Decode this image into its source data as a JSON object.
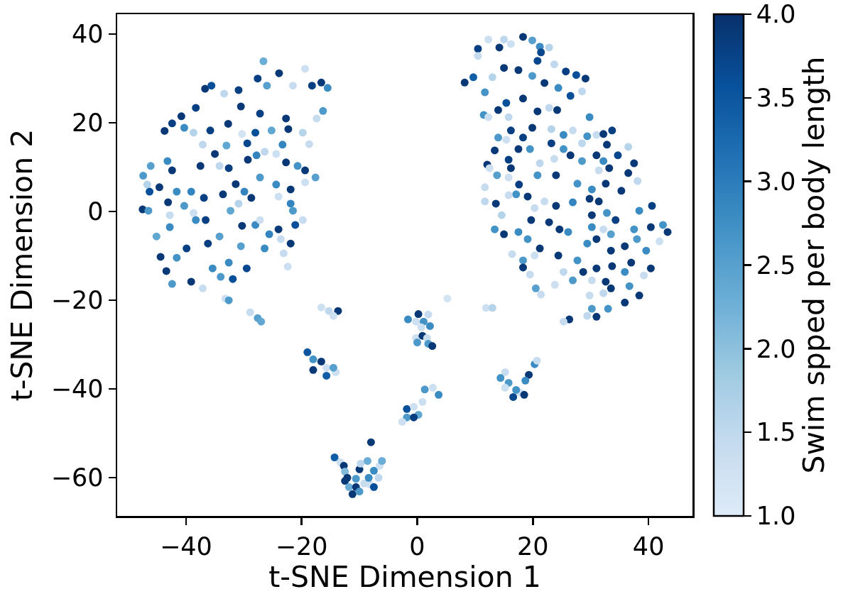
{
  "chart_data": {
    "type": "scatter",
    "xlabel": "t-SNE Dimension 1",
    "ylabel": "t-SNE Dimension 2",
    "clabel": "Swim spped per body length",
    "marker": "circle",
    "xlim": [
      -51.9,
      47.6
    ],
    "xticks": [
      -40,
      -20,
      0,
      20,
      40
    ],
    "ylim": [
      -68.6,
      44.5
    ],
    "yticks": [
      -60,
      -40,
      -20,
      0,
      20,
      40
    ],
    "clim": [
      1.0,
      4.0
    ],
    "cticks": [
      {
        "value": 1.0,
        "label": "1.0"
      },
      1.5,
      {
        "value": 2.0,
        "label": "2.0"
      },
      2.5,
      {
        "value": 3.0,
        "label": "3.0"
      },
      3.5,
      {
        "value": 4.0,
        "label": "4.0"
      }
    ],
    "x": [
      -26.6,
      -23.9,
      -19.4,
      -16.6,
      -15.5,
      -36.7,
      -35.6,
      -33.4,
      -30.9,
      -27.6,
      -26.0,
      -21.5,
      -18.2,
      -16.3,
      -17.4,
      -22.7,
      -27.2,
      -30.5,
      -38.3,
      -40.8,
      -43.7,
      -42.4,
      -40.3,
      -38.7,
      -35.8,
      -37.1,
      -35.0,
      -32.7,
      -30.3,
      -28.0,
      -25.2,
      -22.3,
      -19.8,
      -18.7,
      -23.3,
      -29.4,
      -33.0,
      -29.3,
      -34.2,
      -37.5,
      -43.2,
      -42.4,
      -46.1,
      -47.4,
      -46.7,
      -44.6,
      -46.3,
      -47.5,
      -46.5,
      -43.1,
      -42.8,
      -41.6,
      -39.1,
      -40.3,
      -36.9,
      -33.6,
      -38.7,
      -36.6,
      -32.6,
      -31.4,
      -29.9,
      -28.7,
      -30.9,
      -32.3,
      -27.8,
      -26.4,
      -24.4,
      -22.7,
      -20.7,
      -19.4,
      -17.6,
      -19.4,
      -21.9,
      -24.4,
      -27.2,
      -24.0,
      -21.9,
      -21.5,
      -19.8,
      -21.1,
      -24.0,
      -23.6,
      -21.9,
      -23.1,
      -22.4,
      -28.0,
      -30.3,
      -34.2,
      -36.2,
      -39.9,
      -41.6,
      -44.4,
      -45.1,
      -42.8,
      -43.4,
      -42.4,
      -39.1,
      -37.1,
      -35.4,
      -31.9,
      -32.6,
      -30.5,
      -29.5,
      -26.4,
      -27.2,
      -25.6,
      -38.3,
      -34.0,
      12.3,
      15.0,
      18.3,
      19.9,
      21.2,
      22.8,
      10.5,
      10.5,
      14.2,
      16.2,
      21.4,
      8.2,
      9.7,
      11.7,
      13.0,
      15.0,
      17.5,
      19.9,
      20.8,
      23.7,
      25.7,
      27.5,
      29.1,
      28.5,
      26.5,
      24.4,
      22.0,
      18.3,
      15.4,
      14.0,
      11.5,
      12.3,
      15.8,
      20.8,
      22.8,
      24.2,
      29.8,
      23.2,
      25.3,
      26.9,
      16.2,
      19.9,
      14.0,
      15.4,
      18.3,
      13.4,
      12.1,
      12.5,
      15.8,
      17.5,
      19.5,
      16.2,
      21.2,
      23.7,
      23.2,
      24.0,
      20.8,
      17.6,
      15.8,
      13.8,
      25.3,
      26.5,
      28.5,
      29.4,
      31.0,
      32.2,
      33.7,
      32.8,
      31.0,
      28.5,
      32.2,
      34.7,
      36.5,
      37.5,
      36.5,
      38.1,
      33.2,
      31.4,
      27.7,
      32.6,
      35.3,
      30.2,
      29.8,
      31.4,
      30.2,
      32.8,
      34.3,
      38.4,
      40.6,
      42.5,
      43.3,
      41.9,
      40.4,
      37.5,
      38.0,
      35.9,
      33.5,
      32.2,
      30.2,
      31.0,
      33.5,
      29.4,
      26.1,
      24.6,
      22.8,
      19.7,
      20.3,
      22.0,
      24.0,
      26.9,
      19.1,
      17.1,
      15.8,
      13.6,
      11.7,
      11.7,
      14.6,
      13.4,
      15.0,
      17.5,
      19.1,
      21.2,
      24.4,
      20.3,
      16.4,
      18.3,
      18.3,
      19.5,
      20.5,
      21.4,
      23.8,
      25.3,
      26.9,
      27.7,
      28.7,
      31.0,
      33.7,
      35.9,
      37.0,
      39.6,
      40.4,
      39.2,
      36.7,
      33.5,
      32.2,
      29.8,
      32.6,
      38.4,
      35.9,
      33.0,
      30.2,
      31.0,
      29.4,
      26.3,
      25.3,
      11.9,
      13.0,
      30.2,
      -33.2,
      -32.6,
      -28.9,
      -27.6,
      -27.0,
      -16.6,
      -15.3,
      -13.7,
      -14.5,
      -19.0,
      -18.0,
      -16.6,
      -18.0,
      -15.7,
      -15.7,
      -14.1,
      -14.5,
      5.2,
      0.2,
      -1.6,
      1.9,
      -0.2,
      1.1,
      2.2,
      0.7,
      -0.2,
      0.9,
      1.7,
      1.9,
      2.6,
      0.0,
      15.2,
      14.4,
      15.8,
      15.2,
      16.6,
      17.8,
      18.5,
      19.3,
      18.7,
      20.3,
      20.7,
      17.1,
      1.3,
      2.7,
      3.7,
      0.9,
      -1.8,
      -0.6,
      -1.8,
      0.2,
      -2.6,
      -0.6,
      -8.0,
      -14.3,
      -13.3,
      -12.7,
      -12.5,
      -12.1,
      -12.5,
      -11.8,
      -11.2,
      -10.6,
      -10.6,
      -10.0,
      -9.8,
      -8.6,
      -9.2,
      -8.2,
      -8.4,
      -7.5,
      -7.5,
      -6.7,
      -6.5,
      -6.1,
      -10.0
    ],
    "values": [
      33.9,
      31.2,
      32.2,
      29.1,
      27.9,
      27.7,
      28.4,
      26.6,
      27.4,
      30.0,
      28.4,
      28.4,
      28.4,
      22.7,
      21.0,
      21.0,
      22.1,
      23.7,
      23.4,
      21.5,
      18.2,
      19.9,
      18.9,
      17.8,
      18.3,
      15.1,
      13.0,
      19.8,
      17.5,
      17.8,
      18.3,
      18.6,
      17.8,
      15.2,
      15.1,
      15.4,
      14.9,
      11.7,
      10.3,
      10.3,
      11.4,
      9.3,
      10.3,
      8.1,
      6.1,
      5.5,
      4.5,
      0.5,
      0.2,
      2.1,
      -0.8,
      4.5,
      4.5,
      1.3,
      3.1,
      3.9,
      -0.3,
      -1.9,
      9.8,
      6.2,
      4.5,
      3.1,
      1.8,
      0.2,
      12.7,
      13.5,
      13.0,
      11.1,
      10.3,
      9.3,
      7.7,
      6.6,
      5.0,
      6.1,
      7.7,
      3.4,
      1.8,
      0.2,
      -1.9,
      -3.0,
      -4.0,
      -6.2,
      -7.2,
      -9.4,
      -12.4,
      -3.0,
      -3.2,
      -5.6,
      -7.2,
      -8.3,
      -10.4,
      -10.2,
      -5.6,
      -3.5,
      -13.4,
      -16.3,
      -15.8,
      -17.3,
      -12.8,
      -15.2,
      -11.5,
      -7.8,
      -12.8,
      -8.3,
      -1.9,
      -5.1,
      -1.9,
      -14.7,
      38.8,
      38.8,
      39.4,
      38.6,
      37.2,
      37.0,
      36.7,
      35.1,
      37.0,
      37.8,
      35.9,
      29.1,
      30.3,
      26.9,
      30.3,
      32.4,
      31.9,
      30.6,
      34.0,
      33.2,
      31.6,
      30.8,
      30.0,
      27.1,
      26.1,
      27.9,
      29.0,
      25.5,
      24.5,
      22.9,
      21.8,
      21.3,
      21.3,
      22.6,
      23.4,
      22.9,
      21.3,
      18.6,
      17.3,
      18.3,
      18.3,
      18.9,
      16.7,
      16.2,
      16.7,
      13.8,
      10.6,
      9.8,
      11.7,
      14.1,
      14.1,
      9.8,
      10.9,
      11.9,
      15.4,
      8.2,
      8.2,
      6.1,
      7.7,
      8.2,
      14.1,
      12.7,
      15.4,
      17.0,
      17.3,
      17.5,
      18.3,
      15.1,
      12.7,
      11.4,
      11.4,
      12.7,
      14.6,
      10.9,
      8.7,
      6.9,
      9.8,
      9.3,
      6.3,
      6.3,
      4.7,
      5.0,
      2.9,
      2.3,
      -0.8,
      -0.3,
      -1.9,
      0.2,
      1.3,
      -3.0,
      -4.6,
      -6.7,
      -3.5,
      -4.0,
      -6.2,
      -7.8,
      -5.1,
      -4.0,
      -3.5,
      -6.2,
      -8.8,
      -7.2,
      -4.6,
      -4.0,
      -2.4,
      -1.9,
      0.8,
      2.3,
      1.3,
      2.1,
      3.4,
      3.9,
      3.7,
      1.8,
      2.3,
      5.5,
      -0.8,
      -4.0,
      -5.1,
      -4.6,
      -6.2,
      -8.3,
      -9.9,
      -9.9,
      -9.6,
      -11.0,
      -12.6,
      -14.2,
      -17.3,
      -18.7,
      -16.5,
      -13.6,
      -15.5,
      -11.0,
      -13.6,
      -12.8,
      -12.3,
      -13.6,
      -11.5,
      -8.8,
      -12.8,
      -14.4,
      -16.8,
      -17.3,
      -18.4,
      -18.9,
      -15.8,
      -18.9,
      -20.5,
      -21.9,
      -21.9,
      -23.7,
      -23.5,
      -24.3,
      -24.8,
      -21.7,
      -21.7,
      -15.5,
      -19.6,
      -20.0,
      -22.7,
      -24.0,
      -24.8,
      -21.6,
      -22.4,
      -22.4,
      -23.5,
      -31.7,
      -33.3,
      -33.8,
      -35.7,
      -35.2,
      -37.0,
      -36.2,
      -35.2,
      -19.6,
      -23.1,
      -24.3,
      -23.2,
      -24.8,
      -24.8,
      -25.8,
      -26.1,
      -28.5,
      -28.0,
      -28.5,
      -29.8,
      -30.3,
      -29.5,
      -36.2,
      -37.5,
      -38.6,
      -39.7,
      -41.8,
      -40.8,
      -41.3,
      -36.8,
      -38.1,
      -34.4,
      -33.6,
      -40.2,
      -40.1,
      -39.7,
      -41.3,
      -42.9,
      -44.5,
      -44.0,
      -46.4,
      -45.8,
      -47.4,
      -46.4,
      -52.0,
      -55.4,
      -56.5,
      -57.3,
      -58.6,
      -60.0,
      -60.7,
      -62.1,
      -63.7,
      -62.1,
      -60.2,
      -58.1,
      -56.8,
      -56.2,
      -61.3,
      -61.5,
      -60.0,
      -58.4,
      -62.1,
      -60.0,
      -57.3,
      -56.2,
      -63.1
    ],
    "cvalues": [
      2.3,
      3.9,
      1.3,
      3.9,
      2.8,
      3.9,
      3.6,
      1.5,
      3.8,
      3.8,
      2.5,
      1.4,
      3.8,
      2.6,
      1.4,
      3.9,
      3.8,
      3.9,
      3.8,
      3.9,
      3.9,
      3.8,
      2.8,
      1.6,
      3.8,
      1.5,
      3.9,
      3.9,
      1.2,
      3.6,
      2.4,
      3.9,
      1.6,
      1.4,
      2.9,
      3.7,
      2.4,
      3.9,
      1.5,
      3.9,
      2.8,
      3.9,
      2.5,
      2.6,
      1.6,
      3.9,
      3.6,
      3.9,
      2.6,
      3.9,
      1.4,
      2.8,
      2.9,
      2.6,
      3.8,
      3.9,
      1.3,
      3.8,
      3.8,
      3.9,
      2.9,
      3.9,
      1.6,
      2.4,
      2.9,
      1.5,
      1.3,
      3.9,
      2.7,
      3.9,
      2.5,
      1.3,
      3.9,
      2.8,
      2.6,
      1.3,
      2.9,
      2.6,
      1.4,
      3.6,
      3.9,
      1.4,
      3.9,
      1.4,
      1.3,
      2.8,
      3.9,
      2.5,
      3.8,
      3.8,
      2.7,
      3.9,
      2.4,
      2.8,
      3.9,
      2.6,
      3.9,
      1.4,
      2.8,
      3.6,
      2.8,
      2.5,
      3.7,
      2.8,
      1.3,
      2.9,
      2.8,
      2.6,
      1.3,
      1.5,
      3.9,
      2.5,
      2.8,
      1.6,
      3.8,
      1.4,
      3.9,
      1.3,
      3.7,
      3.9,
      3.4,
      2.7,
      1.6,
      3.9,
      3.9,
      2.6,
      3.7,
      1.5,
      3.8,
      3.6,
      3.9,
      1.5,
      3.6,
      2.8,
      3.9,
      3.9,
      3.6,
      3.9,
      2.7,
      1.3,
      1.5,
      3.9,
      1.5,
      3.9,
      2.8,
      1.6,
      2.8,
      1.4,
      3.8,
      3.9,
      2.6,
      1.3,
      3.8,
      3.9,
      3.9,
      1.3,
      3.8,
      3.9,
      2.7,
      3.9,
      1.5,
      1.4,
      3.8,
      3.9,
      2.7,
      3.8,
      1.3,
      2.5,
      2.7,
      3.9,
      1.5,
      2.7,
      1.4,
      3.9,
      3.8,
      3.9,
      3.9,
      2.6,
      2.8,
      3.7,
      1.6,
      3.9,
      3.9,
      1.5,
      3.9,
      1.4,
      2.7,
      3.9,
      3.9,
      2.8,
      3.9,
      3.9,
      3.9,
      2.7,
      3.8,
      2.8,
      3.8,
      2.7,
      3.9,
      1.3,
      3.9,
      2.7,
      2.6,
      3.9,
      2.5,
      1.4,
      2.8,
      3.9,
      3.9,
      2.8,
      2.8,
      3.9,
      3.9,
      3.9,
      1.4,
      1.4,
      3.9,
      2.9,
      3.9,
      2.7,
      1.4,
      3.9,
      1.5,
      1.4,
      1.6,
      2.7,
      3.9,
      2.8,
      2.7,
      3.9,
      3.9,
      1.3,
      1.4,
      2.6,
      3.9,
      1.4,
      2.5,
      1.4,
      1.3,
      1.5,
      2.6,
      2.7,
      3.9,
      3.9,
      3.9,
      2.8,
      3.9,
      2.8,
      3.9,
      1.4,
      2.7,
      3.9,
      1.5,
      1.4,
      3.9,
      3.9,
      3.9,
      2.7,
      2.6,
      3.9,
      1.5,
      3.9,
      1.4,
      1.3,
      1.6,
      1.4,
      1.3,
      2.6,
      1.4,
      2.5,
      2.4,
      1.3,
      1.5,
      3.9,
      1.3,
      3.5,
      2.7,
      3.9,
      3.9,
      1.3,
      3.4,
      1.3,
      2.5,
      1.2,
      3.9,
      2.8,
      1.4,
      1.3,
      2.7,
      2.8,
      1.3,
      1.3,
      3.9,
      1.4,
      2.6,
      3.9,
      2.6,
      1.4,
      2.7,
      2.6,
      1.3,
      3.7,
      1.3,
      3.9,
      3.9,
      2.8,
      2.8,
      1.4,
      2.7,
      2.6,
      1.3,
      2.8,
      1.3,
      3.6,
      1.3,
      2.6,
      2.4,
      1.3,
      3.8,
      3.9,
      3.4,
      1.3,
      3.9,
      2.1,
      3.9,
      3.9,
      2.3,
      3.9,
      3.9,
      2.6,
      3.9,
      1.5,
      2.3,
      1.4,
      1.3,
      2.8,
      2.8,
      3.6,
      1.5,
      1.3,
      2.3,
      2.6
    ]
  }
}
